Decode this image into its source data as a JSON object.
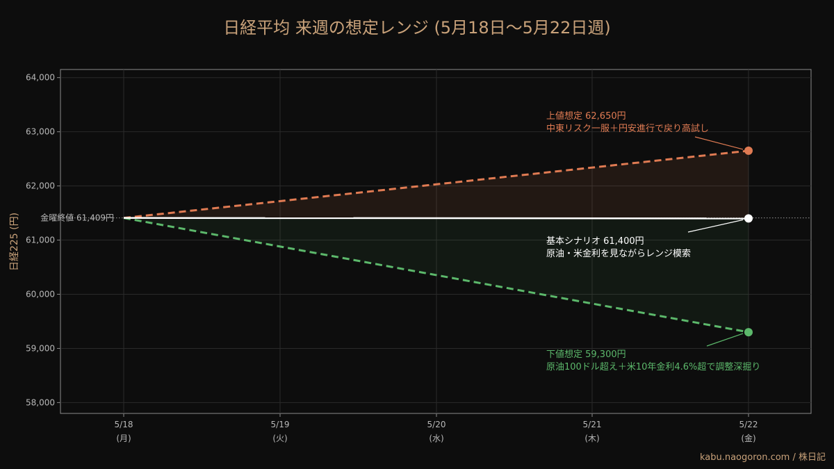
{
  "chart_data": {
    "type": "line",
    "title": "日経平均 来週の想定レンジ (5月18日〜5月22日週)",
    "ylabel": "日経225 (円)",
    "xlabel": "",
    "ylim": [
      57800,
      64150
    ],
    "y_ticks": [
      58000,
      59000,
      60000,
      61000,
      62000,
      63000,
      64000
    ],
    "y_tick_labels": [
      "58,000",
      "59,000",
      "60,000",
      "61,000",
      "62,000",
      "63,000",
      "64,000"
    ],
    "categories": [
      "5/18\n(月)",
      "5/19\n(火)",
      "5/20\n(水)",
      "5/21\n(木)",
      "5/22\n(金)"
    ],
    "category_dates": [
      "5/18",
      "5/19",
      "5/20",
      "5/21",
      "5/22"
    ],
    "category_days": [
      "(月)",
      "(火)",
      "(水)",
      "(木)",
      "(金)"
    ],
    "grid": true,
    "reference_line": {
      "label": "金曜終値 61,409円",
      "value": 61409,
      "color": "#9a9a9a"
    },
    "series": [
      {
        "key": "upper",
        "values": [
          61409,
          null,
          null,
          null,
          62650
        ],
        "color": "#e07b53",
        "style": "dashed"
      },
      {
        "key": "base",
        "values": [
          61409,
          null,
          null,
          null,
          61400
        ],
        "color": "#ffffff",
        "style": "solid"
      },
      {
        "key": "lower",
        "values": [
          61409,
          null,
          null,
          null,
          59300
        ],
        "color": "#5cb86b",
        "style": "dashed"
      }
    ],
    "annotations": [
      {
        "series": "upper",
        "line1": "上値想定 62,650円",
        "line2": "中東リスク一服＋円安進行で戻り高試し",
        "color": "#e07b53"
      },
      {
        "series": "base",
        "line1": "基本シナリオ 61,400円",
        "line2": "原油・米金利を見ながらレンジ模索",
        "color": "#ffffff"
      },
      {
        "series": "lower",
        "line1": "下値想定 59,300円",
        "line2": "原油100ドル超え＋米10年金利4.6%超で調整深掘り",
        "color": "#5cb86b"
      }
    ]
  },
  "credit": "kabu.naogoron.com / 株日記"
}
